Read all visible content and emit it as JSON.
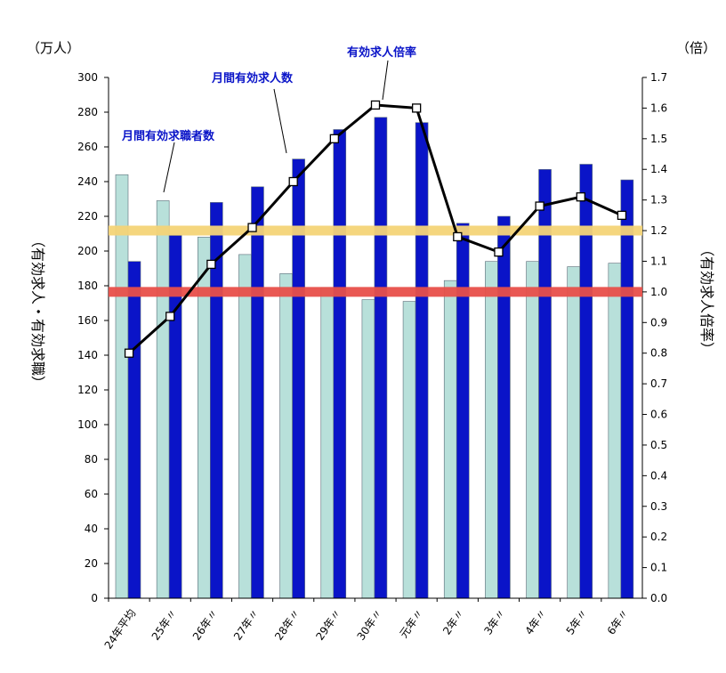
{
  "chart_data": {
    "type": "bar",
    "title": "",
    "categories": [
      "24年平均",
      "25年〃",
      "26年〃",
      "27年〃",
      "28年〃",
      "29年〃",
      "30年〃",
      "元年〃",
      "2年〃",
      "3年〃",
      "4年〃",
      "5年〃",
      "6年〃"
    ],
    "series": [
      {
        "name": "月間有効求職者数",
        "type": "bar",
        "axis": "left",
        "color": "#b8e0da",
        "values": [
          244,
          229,
          208,
          198,
          187,
          179,
          172,
          171,
          183,
          194,
          194,
          191,
          193
        ]
      },
      {
        "name": "月間有効求人数",
        "type": "bar",
        "axis": "left",
        "color": "#0a14c8",
        "values": [
          194,
          209,
          228,
          237,
          253,
          270,
          277,
          274,
          216,
          220,
          247,
          250,
          241
        ]
      },
      {
        "name": "有効求人倍率",
        "type": "line",
        "axis": "right",
        "color": "#000000",
        "values": [
          0.8,
          0.92,
          1.09,
          1.21,
          1.36,
          1.5,
          1.61,
          1.6,
          1.18,
          1.13,
          1.28,
          1.31,
          1.25
        ]
      }
    ],
    "y_left": {
      "label": "（有効求人・有効求職）",
      "unit": "（万人）",
      "ylim": [
        0,
        300
      ],
      "step": 20,
      "ticks": [
        "0",
        "20",
        "40",
        "60",
        "80",
        "100",
        "120",
        "140",
        "160",
        "180",
        "200",
        "220",
        "240",
        "260",
        "280",
        "300"
      ]
    },
    "y_right": {
      "label": "（有効求人倍率）",
      "unit": "（倍）",
      "ylim": [
        0,
        1.7
      ],
      "step": 0.1,
      "ticks": [
        "0.0",
        "0.1",
        "0.2",
        "0.3",
        "0.4",
        "0.5",
        "0.6",
        "0.7",
        "0.8",
        "0.9",
        "1.0",
        "1.1",
        "1.2",
        "1.3",
        "1.4",
        "1.5",
        "1.6",
        "1.7"
      ]
    },
    "reference_lines": [
      {
        "axis": "right",
        "value": 1.2,
        "color": "#f5d478"
      },
      {
        "axis": "right",
        "value": 1.0,
        "color": "#e8504a"
      }
    ],
    "annotations": [
      "月間有効求職者数",
      "月間有効求人数",
      "有効求人倍率"
    ],
    "grid": false
  }
}
